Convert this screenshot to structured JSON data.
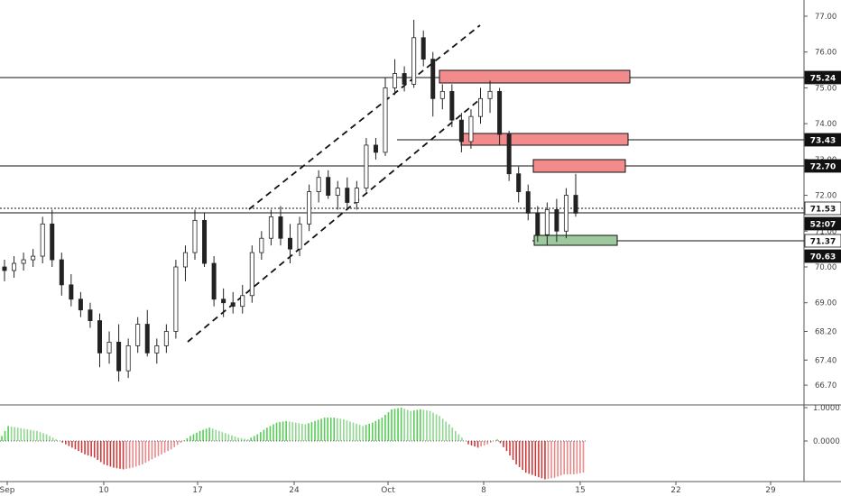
{
  "chart_data": [
    {
      "type": "candlestick",
      "x_labels": [
        "Sep",
        "10",
        "17",
        "24",
        "Oct",
        "8",
        "15",
        "22",
        "29"
      ],
      "ylim": [
        66.4,
        77.2
      ],
      "price_axis_ticks": [
        "77.00",
        "76.00",
        "75.00",
        "74.00",
        "73.00",
        "72.00",
        "71.00",
        "70.00",
        "69.00",
        "68.20",
        "67.40",
        "66.70"
      ],
      "levels": [
        {
          "label": "75.24",
          "value": 75.24,
          "highlight": true
        },
        {
          "label": "73.43",
          "value": 73.43,
          "highlight": true
        },
        {
          "label": "72.70",
          "value": 72.7,
          "highlight": true
        },
        {
          "label": "71.53",
          "value": 71.53,
          "highlight": false,
          "dotted": true
        },
        {
          "label": "52:07",
          "value": 71.15,
          "highlight": true,
          "countdown": true
        },
        {
          "label": "71.37",
          "value": 70.63,
          "highlight": false
        },
        {
          "label": "70.63",
          "value": 70.3,
          "highlight": true
        }
      ],
      "zones": [
        {
          "kind": "resistance",
          "color": "#f28b8b",
          "from_day": 28,
          "to_day": 48,
          "low": 75.02,
          "high": 75.42
        },
        {
          "kind": "resistance",
          "color": "#f28b8b",
          "from_day": 21,
          "to_day": 48,
          "low": 73.25,
          "high": 73.62
        },
        {
          "kind": "resistance",
          "color": "#f28b8b",
          "from_day": 38,
          "to_day": 48,
          "low": 72.52,
          "high": 72.92
        },
        {
          "kind": "support",
          "color": "#9ec99e",
          "from_day": 38,
          "to_day": 46,
          "low": 70.5,
          "high": 70.78
        }
      ],
      "candles": [
        {
          "o": 70.0,
          "h": 70.2,
          "l": 69.6,
          "c": 69.9
        },
        {
          "o": 69.9,
          "h": 70.3,
          "l": 69.7,
          "c": 70.1
        },
        {
          "o": 70.1,
          "h": 70.4,
          "l": 69.9,
          "c": 70.2
        },
        {
          "o": 70.2,
          "h": 70.5,
          "l": 70.0,
          "c": 70.3
        },
        {
          "o": 70.3,
          "h": 71.4,
          "l": 70.1,
          "c": 71.2
        },
        {
          "o": 71.2,
          "h": 71.6,
          "l": 70.0,
          "c": 70.2
        },
        {
          "o": 70.2,
          "h": 70.4,
          "l": 69.2,
          "c": 69.5
        },
        {
          "o": 69.5,
          "h": 69.8,
          "l": 68.9,
          "c": 69.1
        },
        {
          "o": 69.1,
          "h": 69.3,
          "l": 68.6,
          "c": 68.8
        },
        {
          "o": 68.8,
          "h": 69.0,
          "l": 68.3,
          "c": 68.5
        },
        {
          "o": 68.5,
          "h": 68.7,
          "l": 67.2,
          "c": 67.6
        },
        {
          "o": 67.6,
          "h": 68.2,
          "l": 67.3,
          "c": 67.9
        },
        {
          "o": 67.9,
          "h": 68.4,
          "l": 66.8,
          "c": 67.1
        },
        {
          "o": 67.1,
          "h": 68.0,
          "l": 66.9,
          "c": 67.8
        },
        {
          "o": 67.8,
          "h": 68.6,
          "l": 67.6,
          "c": 68.4
        },
        {
          "o": 68.4,
          "h": 68.8,
          "l": 67.5,
          "c": 67.6
        },
        {
          "o": 67.6,
          "h": 68.0,
          "l": 67.3,
          "c": 67.8
        },
        {
          "o": 67.8,
          "h": 68.4,
          "l": 67.6,
          "c": 68.2
        },
        {
          "o": 68.2,
          "h": 70.2,
          "l": 68.0,
          "c": 70.0
        },
        {
          "o": 70.0,
          "h": 70.6,
          "l": 69.6,
          "c": 70.4
        },
        {
          "o": 70.4,
          "h": 71.6,
          "l": 70.2,
          "c": 71.3
        },
        {
          "o": 71.3,
          "h": 71.5,
          "l": 70.0,
          "c": 70.1
        },
        {
          "o": 70.1,
          "h": 70.3,
          "l": 68.9,
          "c": 69.1
        },
        {
          "o": 69.1,
          "h": 69.4,
          "l": 68.6,
          "c": 69.0
        },
        {
          "o": 69.0,
          "h": 69.3,
          "l": 68.7,
          "c": 68.9
        },
        {
          "o": 68.9,
          "h": 69.5,
          "l": 68.7,
          "c": 69.2
        },
        {
          "o": 69.2,
          "h": 70.6,
          "l": 69.0,
          "c": 70.4
        },
        {
          "o": 70.4,
          "h": 71.0,
          "l": 70.2,
          "c": 70.8
        },
        {
          "o": 70.8,
          "h": 71.6,
          "l": 70.6,
          "c": 71.4
        },
        {
          "o": 71.4,
          "h": 71.7,
          "l": 70.6,
          "c": 70.8
        },
        {
          "o": 70.8,
          "h": 71.2,
          "l": 70.1,
          "c": 70.5
        },
        {
          "o": 70.5,
          "h": 71.4,
          "l": 70.3,
          "c": 71.2
        },
        {
          "o": 71.2,
          "h": 72.3,
          "l": 71.0,
          "c": 72.1
        },
        {
          "o": 72.1,
          "h": 72.7,
          "l": 71.8,
          "c": 72.5
        },
        {
          "o": 72.5,
          "h": 72.7,
          "l": 71.9,
          "c": 72.0
        },
        {
          "o": 72.0,
          "h": 72.4,
          "l": 71.6,
          "c": 72.2
        },
        {
          "o": 72.2,
          "h": 72.5,
          "l": 71.6,
          "c": 71.8
        },
        {
          "o": 71.8,
          "h": 72.4,
          "l": 71.6,
          "c": 72.2
        },
        {
          "o": 72.2,
          "h": 73.6,
          "l": 72.1,
          "c": 73.4
        },
        {
          "o": 73.4,
          "h": 73.6,
          "l": 73.0,
          "c": 73.2
        },
        {
          "o": 73.2,
          "h": 75.3,
          "l": 73.1,
          "c": 75.0
        },
        {
          "o": 75.0,
          "h": 75.8,
          "l": 74.8,
          "c": 75.4
        },
        {
          "o": 75.4,
          "h": 75.6,
          "l": 74.9,
          "c": 75.1
        },
        {
          "o": 75.1,
          "h": 76.9,
          "l": 75.0,
          "c": 76.4
        },
        {
          "o": 76.4,
          "h": 76.6,
          "l": 75.6,
          "c": 75.8
        },
        {
          "o": 75.8,
          "h": 76.0,
          "l": 74.2,
          "c": 74.7
        },
        {
          "o": 74.7,
          "h": 75.1,
          "l": 74.4,
          "c": 74.9
        },
        {
          "o": 74.9,
          "h": 75.1,
          "l": 73.9,
          "c": 74.1
        },
        {
          "o": 74.1,
          "h": 74.3,
          "l": 73.2,
          "c": 73.5
        },
        {
          "o": 73.5,
          "h": 74.4,
          "l": 73.3,
          "c": 74.2
        },
        {
          "o": 74.2,
          "h": 75.0,
          "l": 74.0,
          "c": 74.7
        },
        {
          "o": 74.7,
          "h": 75.2,
          "l": 74.3,
          "c": 74.9
        },
        {
          "o": 74.9,
          "h": 75.0,
          "l": 73.4,
          "c": 73.7
        },
        {
          "o": 73.7,
          "h": 73.8,
          "l": 72.4,
          "c": 72.6
        },
        {
          "o": 72.6,
          "h": 72.8,
          "l": 71.8,
          "c": 72.1
        },
        {
          "o": 72.1,
          "h": 72.3,
          "l": 71.3,
          "c": 71.5
        },
        {
          "o": 71.5,
          "h": 71.7,
          "l": 70.7,
          "c": 70.9
        },
        {
          "o": 70.9,
          "h": 71.8,
          "l": 70.6,
          "c": 71.6
        },
        {
          "o": 71.6,
          "h": 71.9,
          "l": 70.7,
          "c": 71.0
        },
        {
          "o": 71.0,
          "h": 72.2,
          "l": 70.8,
          "c": 72.0
        },
        {
          "o": 72.0,
          "h": 72.6,
          "l": 71.4,
          "c": 71.5
        }
      ],
      "oscillator": {
        "axis_ticks": [
          "1.0000",
          "0.0000"
        ],
        "values": [
          0.45,
          0.4,
          0.35,
          0.3,
          0.2,
          0.05,
          -0.1,
          -0.25,
          -0.4,
          -0.5,
          -0.7,
          -0.8,
          -0.85,
          -0.8,
          -0.7,
          -0.55,
          -0.4,
          -0.25,
          -0.05,
          0.15,
          0.3,
          0.4,
          0.3,
          0.2,
          0.1,
          0.05,
          0.2,
          0.4,
          0.55,
          0.6,
          0.55,
          0.5,
          0.6,
          0.7,
          0.7,
          0.65,
          0.55,
          0.45,
          0.55,
          0.7,
          0.95,
          1.0,
          0.9,
          0.95,
          0.9,
          0.75,
          0.5,
          0.2,
          -0.1,
          -0.2,
          -0.1,
          0.05,
          -0.3,
          -0.7,
          -0.95,
          -1.05,
          -1.15,
          -1.1,
          -1.0,
          -1.0,
          -0.95
        ]
      }
    }
  ]
}
